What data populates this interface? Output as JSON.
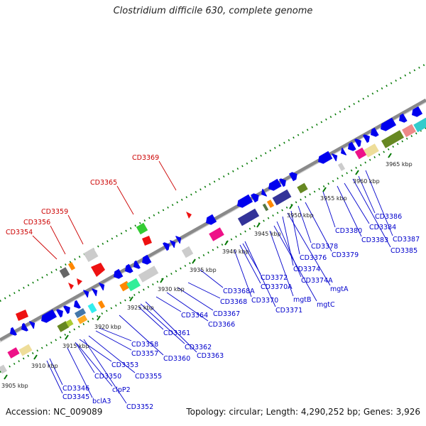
{
  "title": "Clostridium difficile 630, complete genome",
  "footer": {
    "accession": "Accession: NC_009089",
    "stats": "Topology: circular; Length: 4,290,252 bp; Genes: 3,926"
  },
  "colors": {
    "label_red": "#cc0000",
    "label_blue": "#0000cc",
    "gene_blue": "#0000ee",
    "backbone": "#888888",
    "tick_green": "#007700"
  },
  "kbp_labels": [
    "3905 kbp",
    "3910 kbp",
    "3915 kbp",
    "3920 kbp",
    "3925 kbp",
    "3930 kbp",
    "3935 kbp",
    "3940 kbp",
    "3945 kbp",
    "3950 kbp",
    "3955 kbp",
    "3960 kbp",
    "3965 kbp"
  ],
  "red_labels": [
    "CD3354",
    "CD3356",
    "CD3359",
    "CD3365",
    "CD3369"
  ],
  "blue_labels": [
    "CD3346",
    "CD3345",
    "bclA3",
    "clpP2",
    "CD3352",
    "CD3350",
    "CD3353",
    "CD3355",
    "CD3357",
    "CD3358",
    "CD3360",
    "CD3361",
    "CD3362",
    "CD3363",
    "CD3364",
    "CD3366",
    "CD3367",
    "CD3368",
    "CD3368A",
    "CD3370",
    "CD3370A",
    "CD3371",
    "CD3372",
    "mgtB",
    "mgtC",
    "CD3374A",
    "mgtA",
    "CD3374",
    "CD3376",
    "CD3378",
    "CD3379",
    "CD3380",
    "CD3383",
    "CD3384",
    "CD3385",
    "CD3386",
    "CD3387"
  ]
}
